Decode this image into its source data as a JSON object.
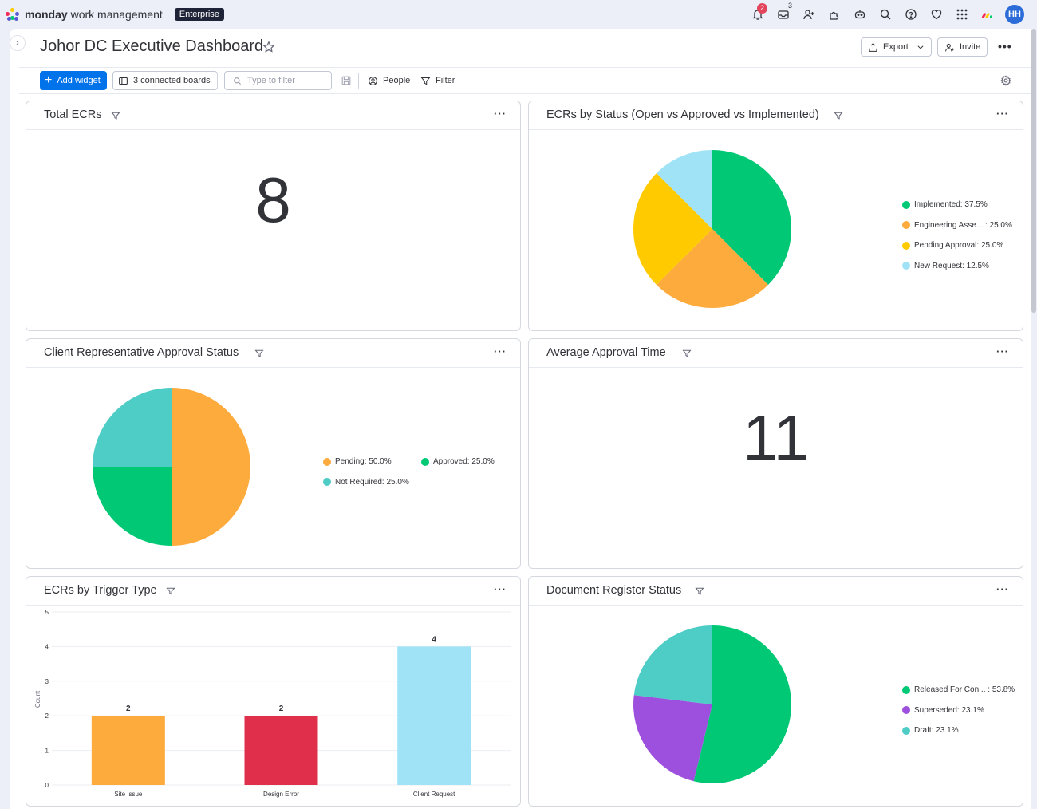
{
  "app": {
    "brand_bold": "monday",
    "brand_rest": " work management",
    "plan_badge": "Enterprise",
    "notifications_count": "2",
    "inbox_count": "3",
    "avatar_initials": "HH"
  },
  "header": {
    "title": "Johor DC Executive Dashboard",
    "export_label": "Export",
    "invite_label": "Invite"
  },
  "toolbar": {
    "add_widget_label": "Add widget",
    "connected_boards_label": "3 connected boards",
    "filter_placeholder": "Type to filter",
    "people_label": "People",
    "filter_label": "Filter"
  },
  "colors": {
    "green": "#00c875",
    "orange": "#fdab3d",
    "yellow": "#ffcb00",
    "light_blue": "#a1e3f6",
    "teal": "#4eccc6",
    "purple": "#9d50dd",
    "red": "#df2f4a",
    "primary": "#0073ea"
  },
  "widgets": {
    "total_ecrs": {
      "title": "Total ECRs",
      "value": "8"
    },
    "ecrs_by_status": {
      "title": "ECRs by Status (Open vs Approved vs Implemented)",
      "legend": [
        "Implemented: 37.5%",
        "Engineering Asse... : 25.0%",
        "Pending Approval: 25.0%",
        "New Request: 12.5%"
      ]
    },
    "client_approval": {
      "title": "Client Representative Approval Status",
      "legend": [
        "Pending: 50.0%",
        "Approved: 25.0%",
        "Not Required: 25.0%"
      ]
    },
    "avg_approval_time": {
      "title": "Average Approval Time",
      "value": "11"
    },
    "ecrs_by_trigger": {
      "title": "ECRs by Trigger Type",
      "ylabel": "Count"
    },
    "doc_register": {
      "title": "Document Register Status",
      "legend": [
        "Released For Con... : 53.8%",
        "Superseded: 23.1%",
        "Draft: 23.1%"
      ]
    }
  },
  "chart_data": [
    {
      "type": "pie",
      "title": "ECRs by Status (Open vs Approved vs Implemented)",
      "categories": [
        "Implemented",
        "Engineering Asse...",
        "Pending Approval",
        "New Request"
      ],
      "values": [
        37.5,
        25.0,
        25.0,
        12.5
      ],
      "colors": [
        "#00c875",
        "#fdab3d",
        "#ffcb00",
        "#a1e3f6"
      ],
      "legend": "right"
    },
    {
      "type": "pie",
      "title": "Client Representative Approval Status",
      "categories": [
        "Pending",
        "Approved",
        "Not Required"
      ],
      "values": [
        50.0,
        25.0,
        25.0
      ],
      "colors": [
        "#fdab3d",
        "#00c875",
        "#4eccc6"
      ],
      "legend": "right"
    },
    {
      "type": "bar",
      "title": "ECRs by Trigger Type",
      "categories": [
        "Site Issue",
        "Design Error",
        "Client Request"
      ],
      "values": [
        2,
        2,
        4
      ],
      "colors": [
        "#fdab3d",
        "#df2f4a",
        "#a1e3f6"
      ],
      "ylabel": "Count",
      "ylim": [
        0,
        5
      ],
      "yticks": [
        "0",
        "1",
        "2",
        "3",
        "4",
        "5"
      ],
      "grid": true
    },
    {
      "type": "pie",
      "title": "Document Register Status",
      "categories": [
        "Released For Con...",
        "Superseded",
        "Draft"
      ],
      "values": [
        53.8,
        23.1,
        23.1
      ],
      "colors": [
        "#00c875",
        "#9d50dd",
        "#4eccc6"
      ],
      "legend": "right"
    }
  ]
}
